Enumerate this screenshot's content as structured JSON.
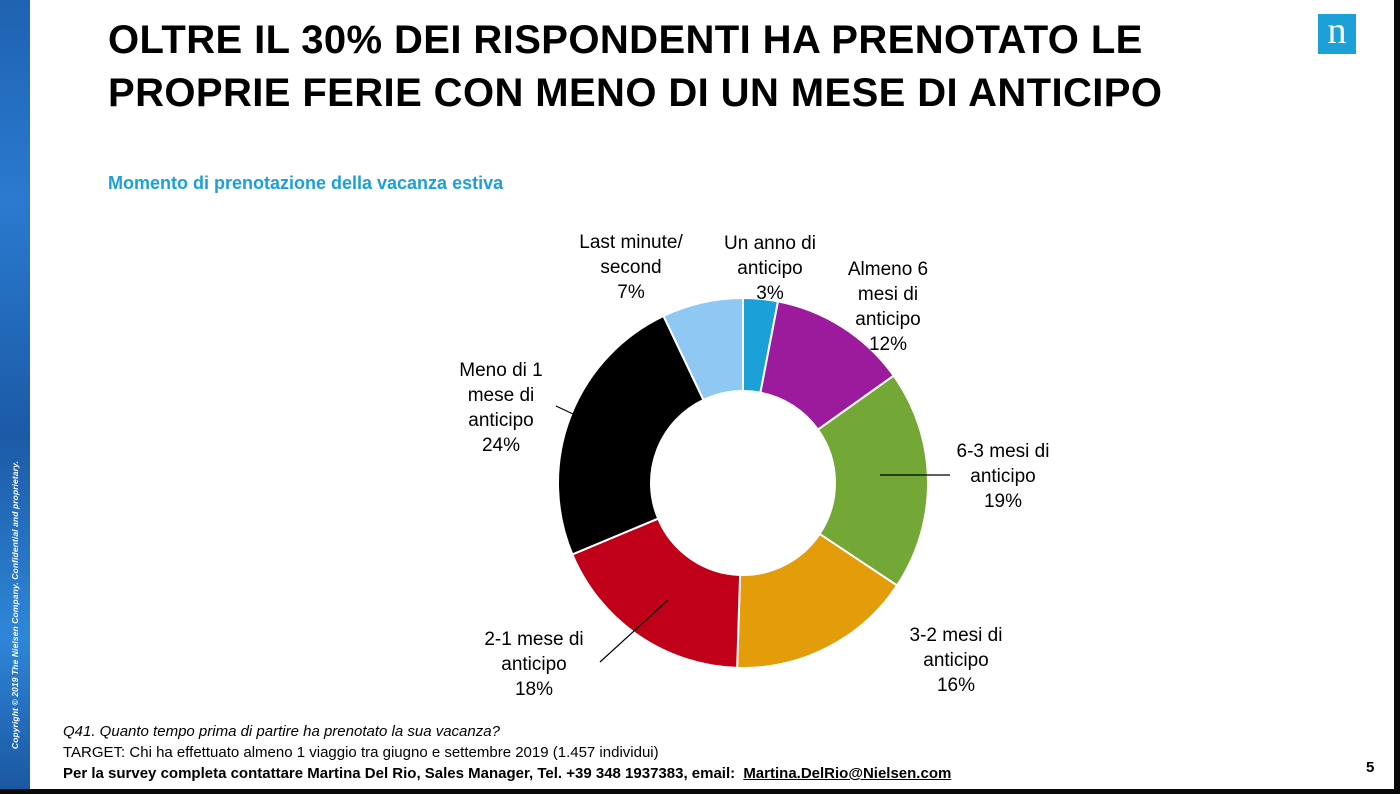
{
  "slide": {
    "title": "OLTRE IL 30% DEI RISPONDENTI HA PRENOTATO LE PROPRIE  FERIE CON MENO DI UN MESE DI ANTICIPO",
    "subtitle": "Momento di prenotazione della vacanza estiva",
    "logo": "n",
    "copyright": "Copyright © 2019 The Nielsen Company. Confidential and proprietary.",
    "page_number": "5"
  },
  "footer": {
    "question": "Q41. Quanto tempo prima di partire ha prenotato la sua vacanza?",
    "target": "TARGET: Chi ha effettuato almeno 1 viaggio tra giugno e settembre 2019 (1.457 individui)",
    "contact": "Per la survey completa contattare Martina Del Rio, Sales Manager, Tel. +39 348 1937383, email:",
    "email": "Martina.DelRio@Nielsen.com"
  },
  "colors": {
    "accent": "#1ba0d7",
    "sidebar": "#1f62b0"
  },
  "chart_data": {
    "type": "pie",
    "donut": true,
    "title": "Momento di prenotazione della vacanza estiva",
    "unit": "%",
    "slices": [
      {
        "label": "Un anno di anticipo",
        "label_lines": [
          "Un anno di",
          "anticipo"
        ],
        "value": 3,
        "value_label": "3%",
        "color": "#1ba0d7"
      },
      {
        "label": "Almeno 6 mesi di anticipo",
        "label_lines": [
          "Almeno 6",
          "mesi di",
          "anticipo"
        ],
        "value": 12,
        "value_label": "12%",
        "color": "#9c1a9c"
      },
      {
        "label": "6-3 mesi di anticipo",
        "label_lines": [
          "6-3 mesi di",
          "anticipo"
        ],
        "value": 19,
        "value_label": "19%",
        "color": "#73a836"
      },
      {
        "label": "3-2 mesi di anticipo",
        "label_lines": [
          "3-2 mesi di",
          "anticipo"
        ],
        "value": 16,
        "value_label": "16%",
        "color": "#e39c0a"
      },
      {
        "label": "2-1 mese di anticipo",
        "label_lines": [
          "2-1 mese di",
          "anticipo"
        ],
        "value": 18,
        "value_label": "18%",
        "color": "#c00018"
      },
      {
        "label": "Meno di 1 mese di anticipo",
        "label_lines": [
          "Meno di 1",
          "mese di",
          "anticipo"
        ],
        "value": 24,
        "value_label": "24%",
        "color": "#000000"
      },
      {
        "label": "Last minute/ second",
        "label_lines": [
          "Last minute/",
          "second"
        ],
        "value": 7,
        "value_label": "7%",
        "color": "#8ec8f3"
      }
    ]
  }
}
